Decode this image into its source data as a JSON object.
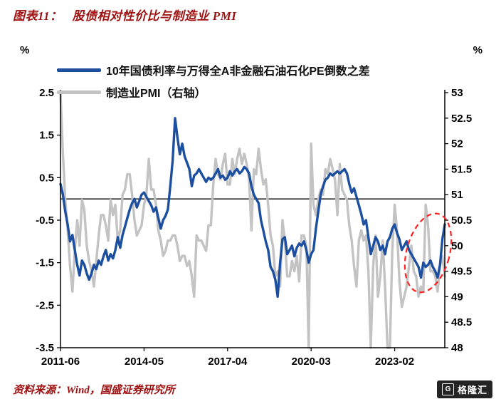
{
  "theme": {
    "accent_red": "#A01212",
    "text_black": "#000000",
    "logo_bg": "#242424"
  },
  "header": {
    "title_prefix": "图表11：",
    "title": "股债相对性价比与制造业 PMI"
  },
  "footer": {
    "source": "资料来源：Wind，国盛证券研究所"
  },
  "logo": {
    "icon": "G",
    "text": "格隆汇"
  },
  "chart_data": {
    "type": "line",
    "title": "股债相对性价比与制造业 PMI",
    "x_start": "2011-06",
    "frequency": "monthly",
    "grid": false,
    "legend_position": "top-left",
    "x_tick_indices": [
      0,
      35,
      70,
      105,
      140
    ],
    "x_tick_labels": [
      "2011-06",
      "2014-05",
      "2017-04",
      "2020-03",
      "2023-02"
    ],
    "zero_line_left": 0,
    "left_axis": {
      "unit": "%",
      "min": -3.5,
      "max": 2.5,
      "ticks": [
        2.5,
        1.5,
        0.5,
        -0.5,
        -1.5,
        -2.5,
        -3.5
      ],
      "tick_labels": [
        "2.5",
        "1.5",
        "0.5",
        "-0.5",
        "-1.5",
        "-2.5",
        "-3.5"
      ]
    },
    "right_axis": {
      "unit": "%",
      "min": 48,
      "max": 53,
      "ticks": [
        53,
        52.5,
        52,
        51.5,
        51,
        50.5,
        50,
        49.5,
        49,
        48.5,
        48
      ],
      "tick_labels": [
        "53",
        "52.5",
        "52",
        "51.5",
        "51",
        "50.5",
        "50",
        "49.5",
        "49",
        "48.5",
        "48"
      ]
    },
    "series": [
      {
        "name": "10年国债利率与万得全A非金融石油石化PE倒数之差",
        "axis": "left",
        "color": "#1C4FA0",
        "values": [
          0.35,
          0.1,
          -0.3,
          -0.6,
          -1.0,
          -0.85,
          -1.2,
          -1.55,
          -1.8,
          -1.45,
          -1.55,
          -1.75,
          -1.9,
          -1.75,
          -1.55,
          -1.65,
          -1.45,
          -1.55,
          -1.35,
          -1.2,
          -1.45,
          -1.3,
          -1.4,
          -1.2,
          -0.9,
          -1.15,
          -0.85,
          -0.65,
          -0.45,
          -0.25,
          -0.1,
          0.0,
          -0.2,
          -0.05,
          0.1,
          0.15,
          0.05,
          -0.05,
          -0.15,
          -0.3,
          -0.2,
          -0.45,
          -0.7,
          -0.5,
          -0.4,
          -0.25,
          0.3,
          0.9,
          1.9,
          1.45,
          1.05,
          1.3,
          1.0,
          0.85,
          0.7,
          0.3,
          0.55,
          0.6,
          0.7,
          0.6,
          0.5,
          0.4,
          0.5,
          0.45,
          0.5,
          0.6,
          0.7,
          0.5,
          0.55,
          0.45,
          0.5,
          0.65,
          0.55,
          0.65,
          0.7,
          0.6,
          0.65,
          0.75,
          0.7,
          0.6,
          0.3,
          0.1,
          0.0,
          -0.1,
          -0.5,
          -0.75,
          -1.0,
          -1.2,
          -1.6,
          -1.7,
          -1.9,
          -2.3,
          -1.5,
          -0.95,
          -0.9,
          -1.3,
          -1.2,
          -1.1,
          -1.35,
          -1.15,
          -1.05,
          -1.1,
          -1.0,
          -1.2,
          -1.5,
          -1.3,
          -1.2,
          -0.7,
          -0.3,
          0.1,
          0.3,
          0.45,
          0.5,
          0.6,
          0.55,
          0.6,
          0.65,
          0.6,
          0.65,
          0.7,
          0.6,
          0.35,
          0.15,
          0.25,
          0.05,
          -0.15,
          -0.35,
          -0.6,
          -0.5,
          -0.9,
          -1.3,
          -1.1,
          -0.9,
          -1.0,
          -1.2,
          -1.1,
          -1.3,
          -1.0,
          -0.9,
          -0.7,
          -0.6,
          -0.8,
          -0.95,
          -1.2,
          -1.1,
          -1.0,
          -1.2,
          -1.3,
          -1.4,
          -1.5,
          -1.6,
          -1.85,
          -1.5,
          -1.6,
          -1.55,
          -1.45,
          -1.6,
          -1.7,
          -1.85,
          -1.55,
          -0.95,
          -0.6
        ]
      },
      {
        "name": "制造业PMI（右轴）",
        "axis": "right",
        "color": "#C3C3C3",
        "values": [
          53.0,
          51.8,
          50.9,
          50.3,
          49.6,
          49.1,
          49.9,
          50.5,
          50.0,
          50.9,
          50.7,
          50.0,
          49.7,
          49.5,
          49.2,
          49.7,
          50.2,
          50.6,
          50.6,
          50.4,
          50.1,
          50.9,
          50.6,
          50.8,
          50.1,
          50.3,
          51.0,
          51.1,
          51.4,
          51.4,
          51.0,
          50.5,
          50.2,
          50.3,
          50.4,
          50.8,
          51.0,
          51.7,
          51.1,
          51.1,
          50.8,
          50.3,
          50.1,
          49.8,
          49.9,
          50.1,
          50.1,
          50.2,
          50.2,
          50.0,
          49.7,
          49.8,
          49.8,
          49.6,
          49.7,
          49.4,
          49.0,
          50.2,
          50.1,
          50.1,
          50.0,
          49.9,
          50.4,
          50.4,
          51.2,
          51.7,
          51.4,
          51.3,
          51.6,
          51.8,
          51.2,
          51.2,
          51.7,
          51.4,
          51.7,
          51.9,
          51.6,
          51.8,
          51.6,
          51.3,
          50.3,
          51.5,
          51.4,
          51.9,
          51.5,
          51.2,
          51.3,
          50.8,
          50.2,
          50.0,
          49.4,
          49.5,
          49.2,
          50.5,
          50.1,
          49.4,
          49.4,
          49.7,
          49.5,
          49.8,
          49.3,
          50.2,
          50.2,
          50.0,
          35.7,
          52.0,
          50.8,
          50.6,
          50.9,
          51.1,
          51.0,
          51.5,
          51.4,
          51.7,
          51.5,
          51.3,
          50.6,
          51.6,
          51.1,
          51.0,
          50.9,
          50.4,
          50.1,
          49.6,
          49.2,
          50.1,
          50.3,
          50.1,
          50.2,
          49.5,
          47.4,
          49.6,
          50.2,
          49.0,
          49.4,
          50.1,
          49.2,
          48.0,
          47.0,
          49.9,
          50.8,
          50.3,
          49.3,
          48.8,
          49.0,
          49.2,
          49.6,
          50.0,
          49.5,
          49.4,
          49.0,
          49.2,
          49.1,
          50.8,
          50.4,
          49.5,
          49.5,
          49.4,
          49.1,
          49.6,
          49.8,
          49.4
        ]
      }
    ],
    "annotation": {
      "type": "dashed-ellipse",
      "color": "#FF2222",
      "center_index": 154,
      "center_value_left": -1.27,
      "radius_months": 9,
      "radius_value_left": 0.95,
      "rotate_deg": 15
    }
  }
}
